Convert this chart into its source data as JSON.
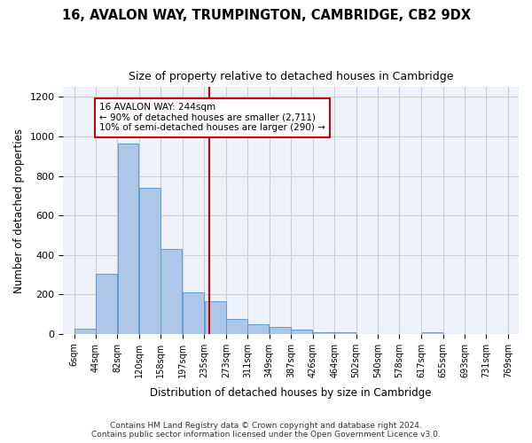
{
  "title": "16, AVALON WAY, TRUMPINGTON, CAMBRIDGE, CB2 9DX",
  "subtitle": "Size of property relative to detached houses in Cambridge",
  "xlabel": "Distribution of detached houses by size in Cambridge",
  "ylabel": "Number of detached properties",
  "bar_values": [
    25,
    305,
    965,
    740,
    430,
    210,
    165,
    75,
    50,
    35,
    20,
    10,
    10,
    0,
    0,
    0,
    10,
    0,
    0
  ],
  "bar_left_edges": [
    6,
    44,
    82,
    120,
    158,
    197,
    235,
    273,
    311,
    349,
    387,
    426,
    464,
    502,
    540,
    578,
    617,
    655,
    693
  ],
  "bin_width": 38,
  "tick_labels": [
    "6sqm",
    "44sqm",
    "82sqm",
    "120sqm",
    "158sqm",
    "197sqm",
    "235sqm",
    "273sqm",
    "311sqm",
    "349sqm",
    "387sqm",
    "426sqm",
    "464sqm",
    "502sqm",
    "540sqm",
    "578sqm",
    "617sqm",
    "655sqm",
    "693sqm",
    "731sqm",
    "769sqm"
  ],
  "tick_positions": [
    6,
    44,
    82,
    120,
    158,
    197,
    235,
    273,
    311,
    349,
    387,
    426,
    464,
    502,
    540,
    578,
    617,
    655,
    693,
    731,
    769
  ],
  "bar_color": "#aec6e8",
  "bar_edge_color": "#5b9bd5",
  "vline_x": 244,
  "vline_color": "#cc0000",
  "annotation_text": "16 AVALON WAY: 244sqm\n← 90% of detached houses are smaller (2,711)\n10% of semi-detached houses are larger (290) →",
  "annotation_box_color": "#cc0000",
  "ylim": [
    0,
    1250
  ],
  "yticks": [
    0,
    200,
    400,
    600,
    800,
    1000,
    1200
  ],
  "grid_color": "#cccccc",
  "bg_color": "#eef3fb",
  "footer_line1": "Contains HM Land Registry data © Crown copyright and database right 2024.",
  "footer_line2": "Contains public sector information licensed under the Open Government Licence v3.0."
}
